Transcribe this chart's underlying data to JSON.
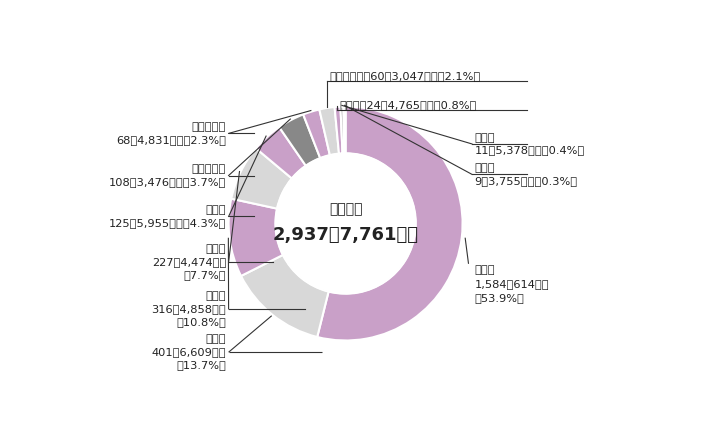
{
  "center_title": "歳出総額",
  "center_amount": "2,937億7,761万円",
  "segments": [
    {
      "label": "福祉費",
      "sub1": "1,584億614万円",
      "sub2": "（53.9%）",
      "value": 53.9,
      "color": "#c9a0c8"
    },
    {
      "label": "総務費",
      "sub1": "401億6,609万円",
      "sub2": "（13.7%）",
      "value": 13.7,
      "color": "#d8d8d8"
    },
    {
      "label": "教育費",
      "sub1": "316億4,858万円",
      "sub2": "（10.8%）",
      "value": 10.8,
      "color": "#c9a0c8"
    },
    {
      "label": "土木費",
      "sub1": "227億4,474万円",
      "sub2": "（7.7%）",
      "value": 7.7,
      "color": "#d8d8d8"
    },
    {
      "label": "衛生費",
      "sub1": "125億5,955万円（4.3%）",
      "sub2": "",
      "value": 4.3,
      "color": "#c9a0c8"
    },
    {
      "label": "環境清掃費",
      "sub1": "108億3,476万円（3.7%）",
      "sub2": "",
      "value": 3.7,
      "color": "#888888"
    },
    {
      "label": "都市整備費",
      "sub1": "68億4,831万円（2.3%）",
      "sub2": "",
      "value": 2.3,
      "color": "#c9a0c8"
    },
    {
      "label": "産業経済費",
      "sub1": "60億3,047万円（2.1%）",
      "sub2": "",
      "value": 2.1,
      "color": "#d8d8d8"
    },
    {
      "label": "公債費",
      "sub1": "24億4,765万円（0.8%）",
      "sub2": "",
      "value": 0.8,
      "color": "#c9a0c8"
    },
    {
      "label": "議会費",
      "sub1": "11億5,378万円（0.4%）",
      "sub2": "",
      "value": 0.4,
      "color": "#888888"
    },
    {
      "label": "その他",
      "sub1": "9億3,755万円（0.3%）",
      "sub2": "",
      "value": 0.3,
      "color": "#c9a0c8"
    }
  ],
  "bg_color": "#ffffff",
  "start_angle": 90,
  "line_color": "#333333",
  "text_color": "#222222"
}
